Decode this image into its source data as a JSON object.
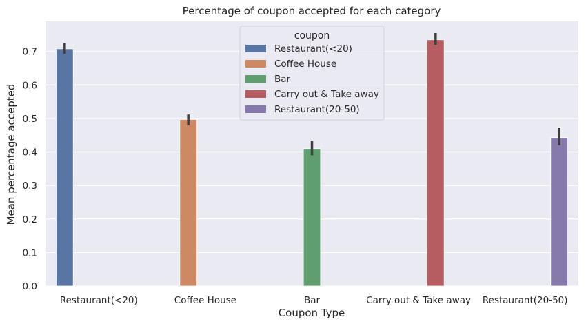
{
  "chart_data": {
    "type": "bar",
    "title": "Percentage of coupon accepted for each category",
    "xlabel": "Coupon Type",
    "ylabel": "Mean percentage accepted",
    "categories": [
      "Restaurant(<20)",
      "Coffee House",
      "Bar",
      "Carry out & Take away",
      "Restaurant(20-50)"
    ],
    "ylim": [
      0,
      0.79
    ],
    "yticks": [
      "0.0",
      "0.1",
      "0.2",
      "0.3",
      "0.4",
      "0.5",
      "0.6",
      "0.7"
    ],
    "grid": true,
    "legend": {
      "title": "coupon",
      "placement": "top-center"
    },
    "series": [
      {
        "name": "Restaurant(<20)",
        "color": "#5875a4",
        "category": "Restaurant(<20)",
        "value": 0.708,
        "ci": [
          0.693,
          0.725
        ]
      },
      {
        "name": "Coffee House",
        "color": "#cc8963",
        "category": "Coffee House",
        "value": 0.497,
        "ci": [
          0.48,
          0.512
        ]
      },
      {
        "name": "Bar",
        "color": "#5f9e6e",
        "category": "Bar",
        "value": 0.41,
        "ci": [
          0.39,
          0.433
        ]
      },
      {
        "name": "Carry out & Take away",
        "color": "#b55d60",
        "category": "Carry out & Take away",
        "value": 0.735,
        "ci": [
          0.72,
          0.755
        ]
      },
      {
        "name": "Restaurant(20-50)",
        "color": "#857aab",
        "category": "Restaurant(20-50)",
        "value": 0.443,
        "ci": [
          0.42,
          0.473
        ]
      }
    ],
    "style": {
      "background": "#eaeaf2",
      "grid_color": "#ffffff",
      "errorbar_color": "#3d3d3d"
    }
  }
}
